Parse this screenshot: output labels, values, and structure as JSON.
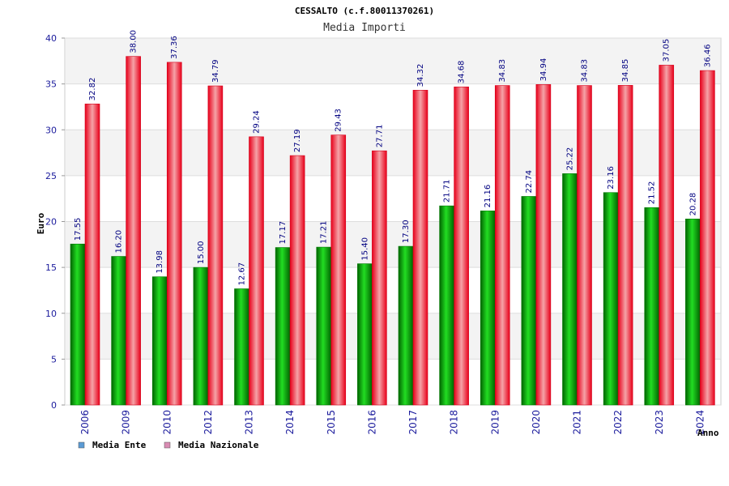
{
  "chart_data": {
    "type": "bar",
    "title": "CESSALTO (c.f.80011370261)",
    "subtitle": "Media Importi",
    "xlabel": "Anno",
    "ylabel": "Euro",
    "ylim": [
      0,
      40
    ],
    "yticks": [
      0,
      5,
      10,
      15,
      20,
      25,
      30,
      35,
      40
    ],
    "grid": true,
    "legend_position": "bottom-left",
    "categories": [
      "2006",
      "2009",
      "2010",
      "2012",
      "2013",
      "2014",
      "2015",
      "2016",
      "2017",
      "2018",
      "2019",
      "2020",
      "2021",
      "2022",
      "2023",
      "2024"
    ],
    "series": [
      {
        "name": "Media Ente",
        "color": "#00aa00",
        "legend_color": "#5b9bd5",
        "values": [
          17.55,
          16.2,
          13.98,
          15.0,
          12.67,
          17.17,
          17.21,
          15.4,
          17.3,
          21.71,
          21.16,
          22.74,
          25.22,
          23.16,
          21.52,
          20.28
        ],
        "labels": [
          "17.55",
          "16.20",
          "13.98",
          "15.00",
          "12.67",
          "17.17",
          "17.21",
          "15.40",
          "17.30",
          "21.71",
          "21.16",
          "22.74",
          "25.22",
          "23.16",
          "21.52",
          "20.28"
        ]
      },
      {
        "name": "Media Nazionale",
        "color": "#ee1c25",
        "legend_color": "#d98cb3",
        "values": [
          32.82,
          38.0,
          37.36,
          34.79,
          29.24,
          27.19,
          29.43,
          27.71,
          34.32,
          34.68,
          34.83,
          34.94,
          34.83,
          34.85,
          37.05,
          36.46
        ],
        "labels": [
          "32.82",
          "38.00",
          "37.36",
          "34.79",
          "29.24",
          "27.19",
          "29.43",
          "27.71",
          "34.32",
          "34.68",
          "34.83",
          "34.94",
          "34.83",
          "34.85",
          "37.05",
          "36.46"
        ]
      }
    ]
  }
}
